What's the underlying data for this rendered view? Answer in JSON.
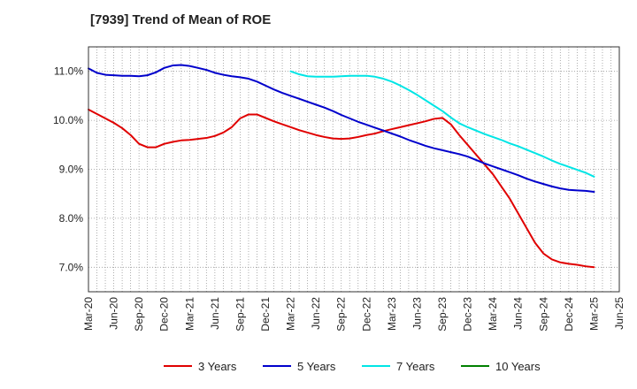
{
  "chart_data": {
    "type": "line",
    "title": "[7939]  Trend of Mean of ROE",
    "xlabel": "",
    "ylabel": "",
    "x_tick_labels": [
      "Mar-20",
      "Jun-20",
      "Sep-20",
      "Dec-20",
      "Mar-21",
      "Jun-21",
      "Sep-21",
      "Dec-21",
      "Mar-22",
      "Jun-22",
      "Sep-22",
      "Dec-22",
      "Mar-23",
      "Jun-23",
      "Sep-23",
      "Dec-23",
      "Mar-24",
      "Jun-24",
      "Sep-24",
      "Dec-24",
      "Mar-25",
      "Jun-25"
    ],
    "y_tick_labels": [
      "7.0%",
      "8.0%",
      "9.0%",
      "10.0%",
      "11.0%"
    ],
    "y_ticks": [
      7.0,
      8.0,
      9.0,
      10.0,
      11.0
    ],
    "ylim": [
      6.5,
      11.5
    ],
    "xlim": [
      0,
      63
    ],
    "grid": true,
    "legend_position": "bottom",
    "series": [
      {
        "name": "3 Years",
        "color": "#e00000",
        "x": [
          0,
          1,
          2,
          3,
          4,
          5,
          6,
          7,
          8,
          9,
          10,
          11,
          12,
          13,
          14,
          15,
          16,
          17,
          18,
          19,
          20,
          21,
          22,
          23,
          24,
          25,
          26,
          27,
          28,
          29,
          30,
          31,
          32,
          33,
          34,
          35,
          36,
          37,
          38,
          39,
          40,
          41,
          42,
          43,
          44,
          45,
          46,
          47,
          48,
          49,
          50,
          51,
          52,
          53,
          54,
          55,
          56,
          57,
          58,
          59,
          60
        ],
        "values": [
          10.22,
          10.13,
          10.04,
          9.95,
          9.84,
          9.7,
          9.52,
          9.45,
          9.45,
          9.52,
          9.56,
          9.59,
          9.6,
          9.62,
          9.64,
          9.68,
          9.75,
          9.86,
          10.04,
          10.12,
          10.12,
          10.05,
          9.98,
          9.92,
          9.86,
          9.8,
          9.75,
          9.7,
          9.66,
          9.63,
          9.62,
          9.63,
          9.66,
          9.7,
          9.73,
          9.78,
          9.82,
          9.86,
          9.9,
          9.94,
          9.98,
          10.03,
          10.05,
          9.92,
          9.7,
          9.5,
          9.3,
          9.1,
          8.9,
          8.65,
          8.4,
          8.1,
          7.8,
          7.5,
          7.28,
          7.16,
          7.1,
          7.07,
          7.05,
          7.02,
          7.0
        ]
      },
      {
        "name": "5 Years",
        "color": "#0000cc",
        "x": [
          0,
          1,
          2,
          3,
          4,
          5,
          6,
          7,
          8,
          9,
          10,
          11,
          12,
          13,
          14,
          15,
          16,
          17,
          18,
          19,
          20,
          21,
          22,
          23,
          24,
          25,
          26,
          27,
          28,
          29,
          30,
          31,
          32,
          33,
          34,
          35,
          36,
          37,
          38,
          39,
          40,
          41,
          42,
          43,
          44,
          45,
          46,
          47,
          48,
          49,
          50,
          51,
          52,
          53,
          54,
          55,
          56,
          57,
          58,
          59,
          60
        ],
        "values": [
          11.06,
          10.97,
          10.93,
          10.92,
          10.91,
          10.91,
          10.9,
          10.92,
          10.98,
          11.07,
          11.12,
          11.13,
          11.11,
          11.07,
          11.03,
          10.97,
          10.93,
          10.9,
          10.88,
          10.85,
          10.79,
          10.71,
          10.63,
          10.56,
          10.5,
          10.44,
          10.38,
          10.32,
          10.26,
          10.19,
          10.11,
          10.04,
          9.97,
          9.91,
          9.85,
          9.79,
          9.73,
          9.67,
          9.6,
          9.54,
          9.48,
          9.43,
          9.39,
          9.35,
          9.31,
          9.26,
          9.19,
          9.12,
          9.06,
          9.0,
          8.94,
          8.88,
          8.81,
          8.75,
          8.7,
          8.65,
          8.61,
          8.58,
          8.57,
          8.56,
          8.54
        ]
      },
      {
        "name": "7 Years",
        "color": "#00e5e5",
        "x": [
          24,
          25,
          26,
          27,
          28,
          29,
          30,
          31,
          32,
          33,
          34,
          35,
          36,
          37,
          38,
          39,
          40,
          41,
          42,
          43,
          44,
          45,
          46,
          47,
          48,
          49,
          50,
          51,
          52,
          53,
          54,
          55,
          56,
          57,
          58,
          59,
          60
        ],
        "values": [
          11.0,
          10.94,
          10.9,
          10.89,
          10.89,
          10.89,
          10.9,
          10.91,
          10.91,
          10.91,
          10.89,
          10.85,
          10.79,
          10.71,
          10.62,
          10.52,
          10.41,
          10.3,
          10.19,
          10.06,
          9.94,
          9.86,
          9.79,
          9.72,
          9.66,
          9.6,
          9.53,
          9.47,
          9.4,
          9.33,
          9.26,
          9.18,
          9.11,
          9.05,
          8.99,
          8.93,
          8.85
        ]
      },
      {
        "name": "10 Years",
        "color": "#008000",
        "x": [],
        "values": []
      }
    ]
  }
}
